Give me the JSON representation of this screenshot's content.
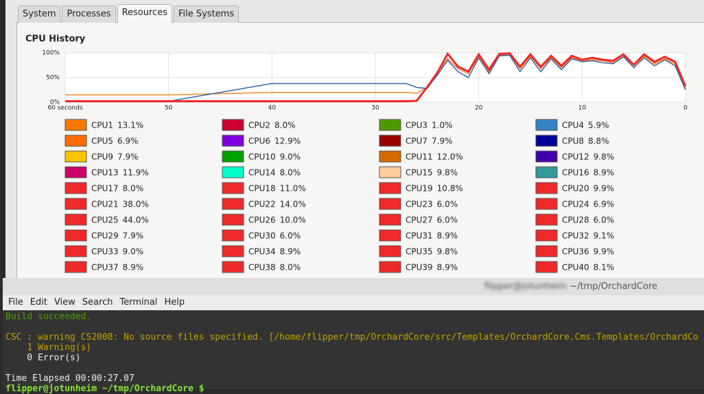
{
  "tabs": [
    "System",
    "Processes",
    "Resources",
    "File Systems"
  ],
  "active_tab": 2,
  "chart_data": {
    "type": "line",
    "title": "CPU History",
    "x": [
      60,
      50,
      40,
      30,
      27,
      26,
      25,
      24,
      23,
      22,
      21,
      20,
      19,
      18,
      17,
      16,
      15,
      14,
      13,
      12,
      11,
      10,
      9,
      8,
      7,
      6,
      5,
      4,
      3,
      2,
      1,
      0
    ],
    "xlim": [
      60,
      0
    ],
    "xticks": [
      {
        "value": 60,
        "label": "60 seconds"
      },
      50,
      40,
      30,
      20,
      10,
      0
    ],
    "ylim": [
      0,
      100
    ],
    "yticks": [
      {
        "value": 0,
        "label": "0%"
      },
      {
        "value": 50,
        "label": "50%"
      },
      {
        "value": 100,
        "label": "100%"
      }
    ],
    "grid": true,
    "series": [
      {
        "color": "#f6882d",
        "values": [
          15,
          15,
          20,
          20,
          20,
          18,
          30,
          60,
          88,
          68,
          58,
          93,
          62,
          95,
          96,
          68,
          93,
          68,
          90,
          70,
          90,
          84,
          86,
          84,
          80,
          93,
          74,
          93,
          78,
          88,
          78,
          28
        ]
      },
      {
        "color": "#3465a4",
        "values": [
          2,
          2,
          38,
          38,
          38,
          30,
          28,
          55,
          85,
          62,
          50,
          90,
          58,
          94,
          95,
          62,
          90,
          62,
          88,
          66,
          88,
          82,
          84,
          80,
          78,
          92,
          70,
          90,
          74,
          86,
          74,
          25
        ]
      },
      {
        "color": "#ef2929",
        "values": [
          2,
          2,
          2,
          2,
          2,
          3,
          30,
          60,
          98,
          72,
          62,
          97,
          66,
          98,
          99,
          72,
          97,
          72,
          94,
          74,
          94,
          86,
          90,
          86,
          84,
          97,
          76,
          97,
          82,
          92,
          82,
          32
        ]
      }
    ]
  },
  "cpus": [
    {
      "name": "CPU1",
      "value": "13.1%",
      "color": "#f57900"
    },
    {
      "name": "CPU2",
      "value": "8.0%",
      "color": "#cc0033"
    },
    {
      "name": "CPU3",
      "value": "1.0%",
      "color": "#4e9a06"
    },
    {
      "name": "CPU4",
      "value": "5.9%",
      "color": "#3483c4"
    },
    {
      "name": "CPU5",
      "value": "6.9%",
      "color": "#ff6b00"
    },
    {
      "name": "CPU6",
      "value": "12.9%",
      "color": "#8000e0"
    },
    {
      "name": "CPU7",
      "value": "7.9%",
      "color": "#990000"
    },
    {
      "name": "CPU8",
      "value": "8.8%",
      "color": "#000099"
    },
    {
      "name": "CPU9",
      "value": "7.9%",
      "color": "#f7c600"
    },
    {
      "name": "CPU10",
      "value": "9.0%",
      "color": "#00a000"
    },
    {
      "name": "CPU11",
      "value": "12.0%",
      "color": "#d46a00"
    },
    {
      "name": "CPU12",
      "value": "9.8%",
      "color": "#4400aa"
    },
    {
      "name": "CPU13",
      "value": "11.9%",
      "color": "#cc0066"
    },
    {
      "name": "CPU14",
      "value": "8.0%",
      "color": "#00ffcc"
    },
    {
      "name": "CPU15",
      "value": "9.8%",
      "color": "#ffcc99"
    },
    {
      "name": "CPU16",
      "value": "8.9%",
      "color": "#339999"
    },
    {
      "name": "CPU17",
      "value": "8.0%",
      "color": "#ef2929"
    },
    {
      "name": "CPU18",
      "value": "11.0%",
      "color": "#ef2929"
    },
    {
      "name": "CPU19",
      "value": "10.8%",
      "color": "#ef2929"
    },
    {
      "name": "CPU20",
      "value": "9.9%",
      "color": "#ef2929"
    },
    {
      "name": "CPU21",
      "value": "38.0%",
      "color": "#ef2929"
    },
    {
      "name": "CPU22",
      "value": "14.0%",
      "color": "#ef2929"
    },
    {
      "name": "CPU23",
      "value": "6.0%",
      "color": "#ef2929"
    },
    {
      "name": "CPU24",
      "value": "6.9%",
      "color": "#ef2929"
    },
    {
      "name": "CPU25",
      "value": "44.0%",
      "color": "#ef2929"
    },
    {
      "name": "CPU26",
      "value": "10.0%",
      "color": "#ef2929"
    },
    {
      "name": "CPU27",
      "value": "6.0%",
      "color": "#ef2929"
    },
    {
      "name": "CPU28",
      "value": "6.0%",
      "color": "#ef2929"
    },
    {
      "name": "CPU29",
      "value": "7.9%",
      "color": "#ef2929"
    },
    {
      "name": "CPU30",
      "value": "6.0%",
      "color": "#ef2929"
    },
    {
      "name": "CPU31",
      "value": "8.9%",
      "color": "#ef2929"
    },
    {
      "name": "CPU32",
      "value": "9.1%",
      "color": "#ef2929"
    },
    {
      "name": "CPU33",
      "value": "9.0%",
      "color": "#ef2929"
    },
    {
      "name": "CPU34",
      "value": "8.9%",
      "color": "#ef2929"
    },
    {
      "name": "CPU35",
      "value": "9.8%",
      "color": "#ef2929"
    },
    {
      "name": "CPU36",
      "value": "9.9%",
      "color": "#ef2929"
    },
    {
      "name": "CPU37",
      "value": "8.9%",
      "color": "#ef2929"
    },
    {
      "name": "CPU38",
      "value": "8.0%",
      "color": "#ef2929"
    },
    {
      "name": "CPU39",
      "value": "8.9%",
      "color": "#ef2929"
    },
    {
      "name": "CPU40",
      "value": "8.1%",
      "color": "#ef2929"
    }
  ],
  "terminal": {
    "user": "flipper@jotunheim",
    "title": "~/tmp/OrchardCore",
    "menu": [
      "File",
      "Edit",
      "View",
      "Search",
      "Terminal",
      "Help"
    ],
    "lines": [
      {
        "text": "Build succeeded.",
        "color": "#4e9a06"
      },
      {
        "text": "CSC : warning CS2008: No source files specified. [/home/flipper/tmp/OrchardCore/src/Templates/OrchardCore.Cms.Templates/OrchardCo",
        "color": "#c4a000"
      },
      {
        "text": "    1 Warning(s)",
        "color": "#c4a000"
      },
      {
        "text": "    0 Error(s)",
        "color": "#eeeeec"
      },
      {
        "text": "Time Elapsed 00:00:27.07",
        "color": "#eeeeec"
      }
    ],
    "prompt": "flipper@jotunheim ~/tmp/OrchardCore $"
  }
}
